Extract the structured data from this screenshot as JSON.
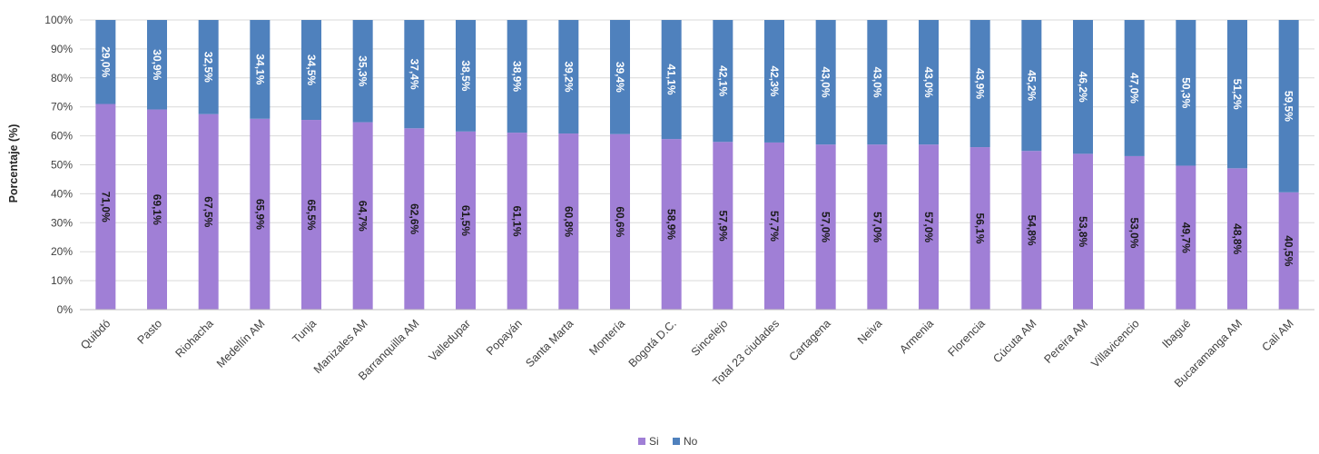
{
  "chart_data": {
    "type": "bar",
    "stacked": true,
    "percent_stacked": true,
    "title": "",
    "xlabel": "",
    "ylabel": "Porcentaje (%)",
    "ylim": [
      0,
      100
    ],
    "y_ticks": [
      "0%",
      "10%",
      "20%",
      "30%",
      "40%",
      "50%",
      "60%",
      "70%",
      "80%",
      "90%",
      "100%"
    ],
    "grid": true,
    "legend_position": "bottom-center",
    "categories": [
      "Quibdó",
      "Pasto",
      "Riohacha",
      "Medellín AM",
      "Tunja",
      "Manizales AM",
      "Barranquilla AM",
      "Valledupar",
      "Popayán",
      "Santa Marta",
      "Montería",
      "Bogotá D.C.",
      "Sincelejo",
      "Total 23 ciudades",
      "Cartagena",
      "Neiva",
      "Armenia",
      "Florencia",
      "Cúcuta AM",
      "Pereira AM",
      "Villavicencio",
      "Ibagué",
      "Bucaramanga AM",
      "Cali AM"
    ],
    "series": [
      {
        "name": "Si",
        "color": "#a07fd6",
        "label_color": "#1a1a1a",
        "values": [
          71.0,
          69.1,
          67.5,
          65.9,
          65.5,
          64.7,
          62.6,
          61.5,
          61.1,
          60.8,
          60.6,
          58.9,
          57.9,
          57.7,
          57.0,
          57.0,
          57.0,
          56.1,
          54.8,
          53.8,
          53.0,
          49.7,
          48.8,
          40.5
        ],
        "labels": [
          "71,0%",
          "69,1%",
          "67,5%",
          "65,9%",
          "65,5%",
          "64,7%",
          "62,6%",
          "61,5%",
          "61,1%",
          "60,8%",
          "60,6%",
          "58,9%",
          "57,9%",
          "57,7%",
          "57,0%",
          "57,0%",
          "57,0%",
          "56,1%",
          "54,8%",
          "53,8%",
          "53,0%",
          "49,7%",
          "48,8%",
          "40,5%"
        ]
      },
      {
        "name": "No",
        "color": "#4f81bd",
        "label_color": "#ffffff",
        "values": [
          29.0,
          30.9,
          32.5,
          34.1,
          34.5,
          35.3,
          37.4,
          38.5,
          38.9,
          39.2,
          39.4,
          41.1,
          42.1,
          42.3,
          43.0,
          43.0,
          43.0,
          43.9,
          45.2,
          46.2,
          47.0,
          50.3,
          51.2,
          59.5
        ],
        "labels": [
          "29,0%",
          "30,9%",
          "32,5%",
          "34,1%",
          "34,5%",
          "35,3%",
          "37,4%",
          "38,5%",
          "38,9%",
          "39,2%",
          "39,4%",
          "41,1%",
          "42,1%",
          "42,3%",
          "43,0%",
          "43,0%",
          "43,0%",
          "43,9%",
          "45,2%",
          "46,2%",
          "47,0%",
          "50,3%",
          "51,2%",
          "59,5%"
        ]
      }
    ]
  }
}
